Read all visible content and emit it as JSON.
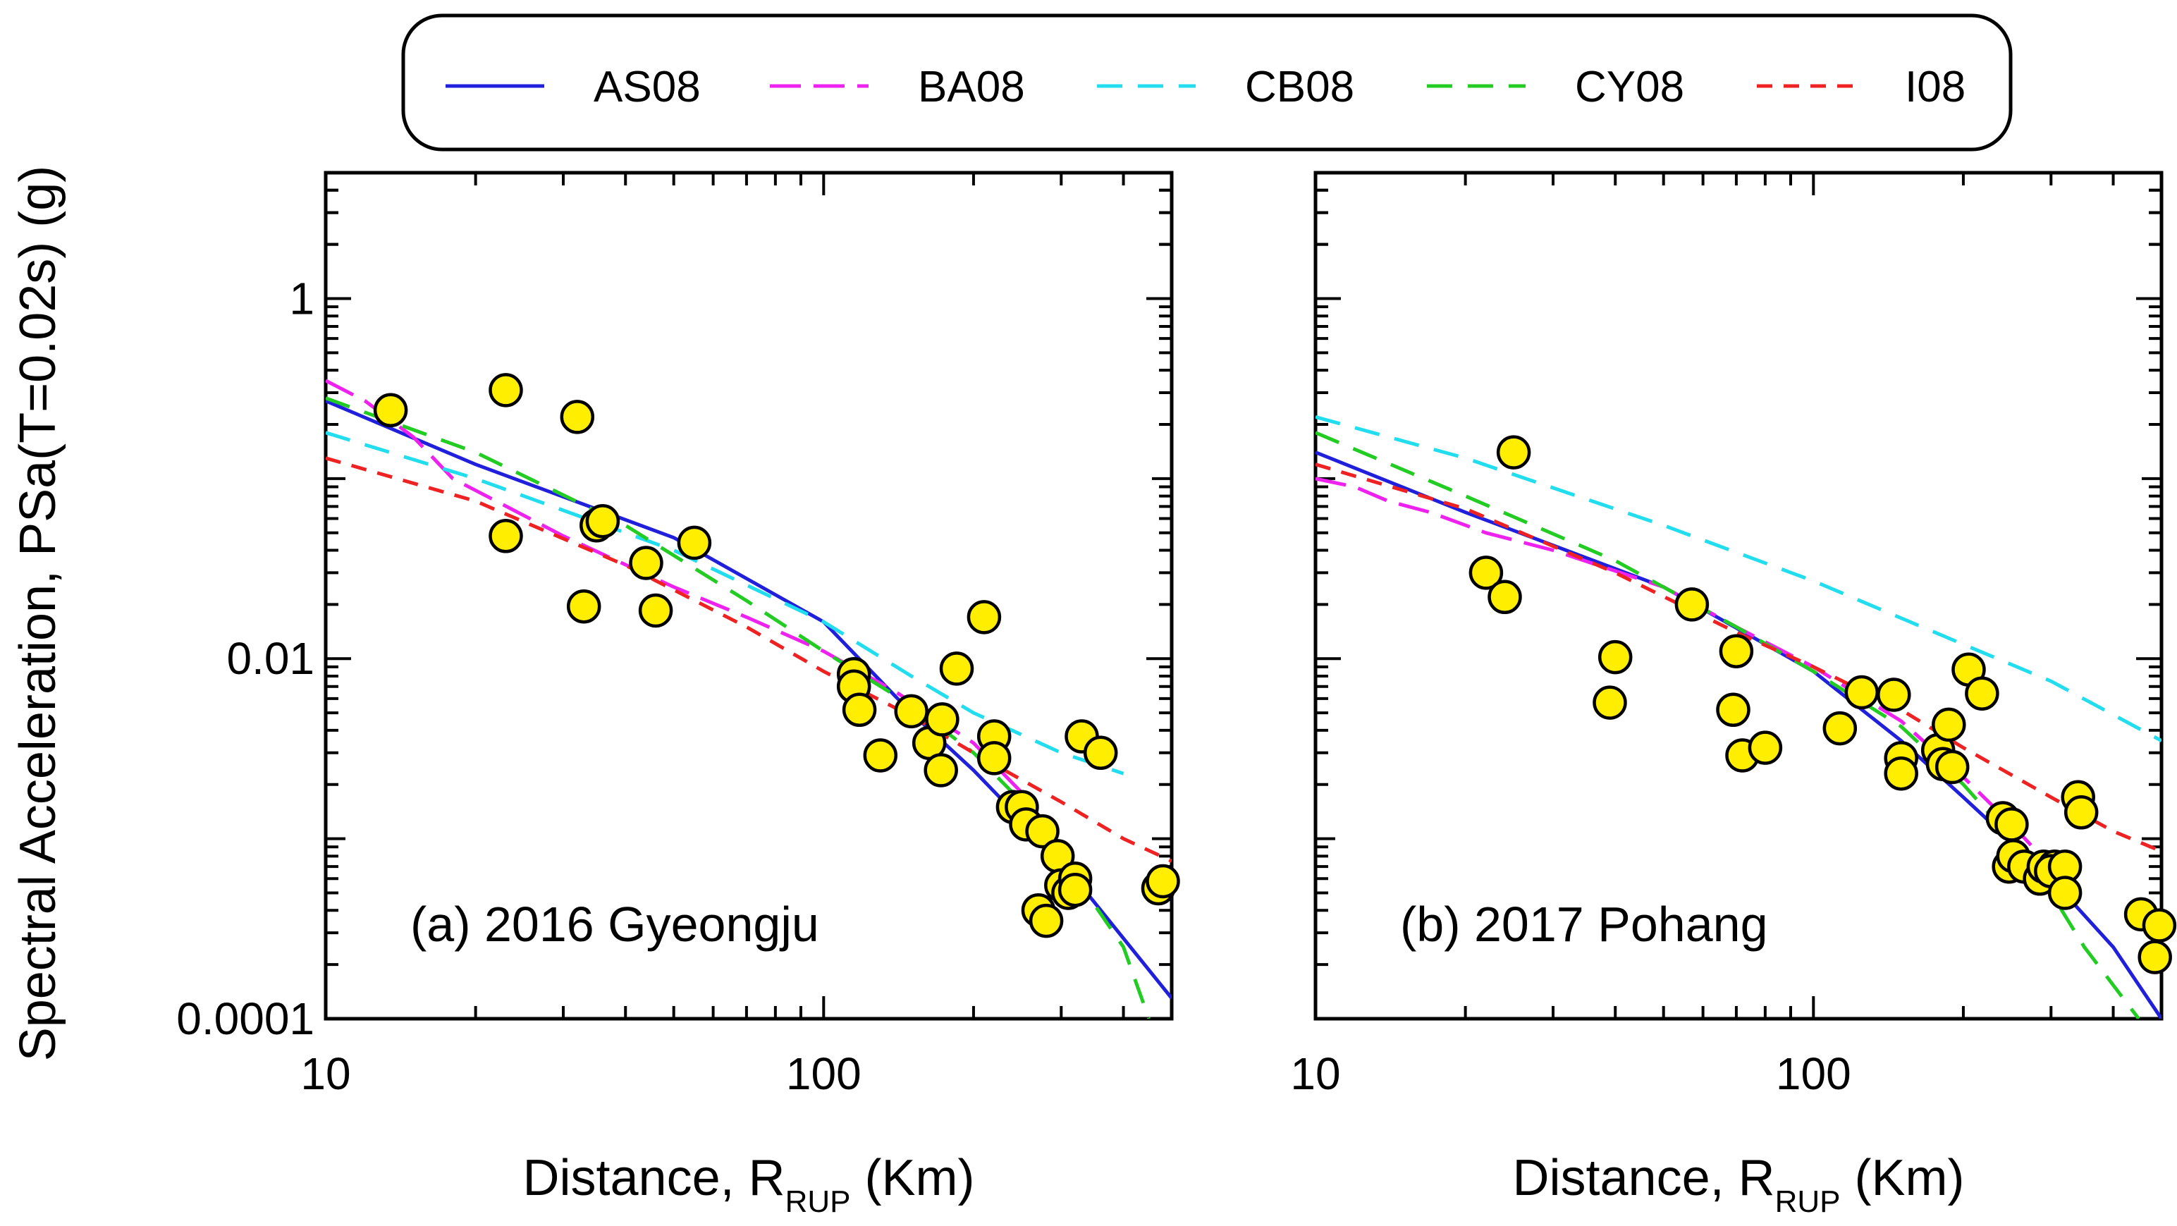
{
  "ylabel": "Spectral Acceleration, PSa(T=0.02s) (g)",
  "xlabel": {
    "main": "Distance, R",
    "sub": "RUP",
    "unit": " (Km)"
  },
  "legend": [
    {
      "key": "AS08",
      "label": "AS08",
      "color": "#1f1fdc",
      "dash": "solid"
    },
    {
      "key": "BA08",
      "label": "BA08",
      "color": "#ee22ee",
      "dash": "longdash"
    },
    {
      "key": "CB08",
      "label": "CB08",
      "color": "#22ddee",
      "dash": "dash"
    },
    {
      "key": "CY08",
      "label": "CY08",
      "color": "#22cc22",
      "dash": "dash"
    },
    {
      "key": "I08",
      "label": "I08",
      "color": "#ee2222",
      "dash": "shortdash"
    }
  ],
  "colors": {
    "marker_fill": "#ffee00",
    "marker_stroke": "#000000",
    "axis": "#000000"
  },
  "chart_data": [
    {
      "type": "scatter",
      "title": "(a) 2016 Gyeongju",
      "xscale": "log",
      "yscale": "log",
      "xlim": [
        10,
        500
      ],
      "ylim": [
        0.0001,
        5
      ],
      "xticks": [
        10,
        100
      ],
      "xtick_labels": [
        "10",
        "100"
      ],
      "yticks": [
        1,
        0.01,
        0.0001
      ],
      "ytick_labels": [
        "1",
        "0.01",
        "0.0001"
      ],
      "observations": [
        [
          13.5,
          0.24
        ],
        [
          23,
          0.31
        ],
        [
          32,
          0.22
        ],
        [
          23,
          0.048
        ],
        [
          35,
          0.055
        ],
        [
          36,
          0.058
        ],
        [
          33,
          0.0195
        ],
        [
          44,
          0.034
        ],
        [
          46,
          0.0185
        ],
        [
          55,
          0.044
        ],
        [
          210,
          0.017
        ],
        [
          115,
          0.0082
        ],
        [
          115,
          0.007
        ],
        [
          118,
          0.0052
        ],
        [
          130,
          0.0029
        ],
        [
          150,
          0.0051
        ],
        [
          163,
          0.0034
        ],
        [
          173,
          0.0046
        ],
        [
          172,
          0.0024
        ],
        [
          185,
          0.0088
        ],
        [
          220,
          0.0037
        ],
        [
          220,
          0.0028
        ],
        [
          240,
          0.0015
        ],
        [
          250,
          0.0015
        ],
        [
          255,
          0.0012
        ],
        [
          275,
          0.0011
        ],
        [
          295,
          0.0008
        ],
        [
          300,
          0.00055
        ],
        [
          310,
          0.0005
        ],
        [
          320,
          0.0006
        ],
        [
          320,
          0.00052
        ],
        [
          270,
          0.0004
        ],
        [
          280,
          0.00035
        ],
        [
          330,
          0.0037
        ],
        [
          360,
          0.003
        ],
        [
          470,
          0.00053
        ],
        [
          480,
          0.00058
        ]
      ],
      "series": [
        {
          "name": "AS08",
          "x": [
            10,
            20,
            50,
            100,
            150,
            200,
            300,
            500
          ],
          "y": [
            0.27,
            0.12,
            0.047,
            0.016,
            0.005,
            0.0024,
            0.00075,
            0.00013
          ]
        },
        {
          "name": "BA08",
          "x": [
            10,
            12,
            15,
            18,
            22,
            30,
            50,
            70,
            100,
            140,
            200,
            250,
            300
          ],
          "y": [
            0.35,
            0.27,
            0.17,
            0.1,
            0.075,
            0.048,
            0.025,
            0.017,
            0.011,
            0.0065,
            0.0034,
            0.0018,
            0.0009
          ]
        },
        {
          "name": "CB08",
          "x": [
            10,
            20,
            50,
            100,
            150,
            200,
            300,
            400
          ],
          "y": [
            0.18,
            0.1,
            0.04,
            0.016,
            0.008,
            0.005,
            0.003,
            0.0023
          ]
        },
        {
          "name": "CY08",
          "x": [
            10,
            20,
            40,
            70,
            100,
            150,
            200,
            250,
            300,
            400,
            450
          ],
          "y": [
            0.28,
            0.14,
            0.055,
            0.021,
            0.011,
            0.0055,
            0.003,
            0.0016,
            0.0008,
            0.00025,
            0.0001
          ]
        },
        {
          "name": "I08",
          "x": [
            10,
            20,
            40,
            70,
            100,
            150,
            200,
            300,
            400,
            500
          ],
          "y": [
            0.13,
            0.075,
            0.033,
            0.015,
            0.0085,
            0.0048,
            0.003,
            0.0016,
            0.001,
            0.00075
          ]
        }
      ]
    },
    {
      "type": "scatter",
      "title": "(b) 2017 Pohang",
      "xscale": "log",
      "yscale": "log",
      "xlim": [
        10,
        500
      ],
      "ylim": [
        0.0001,
        5
      ],
      "xticks": [
        10,
        100
      ],
      "xtick_labels": [
        "10",
        "100"
      ],
      "yticks": [
        1,
        0.01,
        0.0001
      ],
      "ytick_labels": [
        "1",
        "0.01",
        "0.0001"
      ],
      "observations": [
        [
          25,
          0.14
        ],
        [
          22,
          0.03
        ],
        [
          24,
          0.022
        ],
        [
          40,
          0.0102
        ],
        [
          39,
          0.0057
        ],
        [
          57,
          0.02
        ],
        [
          70,
          0.011
        ],
        [
          69,
          0.0052
        ],
        [
          72,
          0.0029
        ],
        [
          80,
          0.0032
        ],
        [
          113,
          0.0041
        ],
        [
          125,
          0.0065
        ],
        [
          145,
          0.0063
        ],
        [
          150,
          0.0028
        ],
        [
          150,
          0.0023
        ],
        [
          178,
          0.0031
        ],
        [
          182,
          0.0026
        ],
        [
          187,
          0.0043
        ],
        [
          190,
          0.0025
        ],
        [
          205,
          0.0087
        ],
        [
          218,
          0.0064
        ],
        [
          240,
          0.0013
        ],
        [
          250,
          0.0012
        ],
        [
          247,
          0.0007
        ],
        [
          252,
          0.0008
        ],
        [
          265,
          0.0007
        ],
        [
          285,
          0.0006
        ],
        [
          290,
          0.0007
        ],
        [
          305,
          0.0007
        ],
        [
          300,
          0.00066
        ],
        [
          320,
          0.0007
        ],
        [
          320,
          0.0005
        ],
        [
          340,
          0.0017
        ],
        [
          345,
          0.0014
        ],
        [
          455,
          0.00038
        ],
        [
          495,
          0.00033
        ],
        [
          485,
          0.00022
        ]
      ],
      "series": [
        {
          "name": "AS08",
          "x": [
            10,
            20,
            50,
            100,
            150,
            200,
            300,
            400,
            500
          ],
          "y": [
            0.14,
            0.065,
            0.025,
            0.0085,
            0.0035,
            0.0017,
            0.0006,
            0.00025,
            0.0001
          ]
        },
        {
          "name": "BA08",
          "x": [
            10,
            12,
            14,
            17,
            22,
            30,
            50,
            70,
            100,
            150,
            200,
            250,
            300
          ],
          "y": [
            0.1,
            0.09,
            0.075,
            0.065,
            0.05,
            0.04,
            0.025,
            0.015,
            0.009,
            0.0045,
            0.0022,
            0.0012,
            0.0007
          ]
        },
        {
          "name": "CB08",
          "x": [
            10,
            20,
            50,
            100,
            200,
            300,
            500
          ],
          "y": [
            0.22,
            0.13,
            0.055,
            0.027,
            0.012,
            0.0075,
            0.0035
          ]
        },
        {
          "name": "CY08",
          "x": [
            10,
            20,
            40,
            70,
            100,
            150,
            200,
            250,
            300,
            350,
            450
          ],
          "y": [
            0.18,
            0.08,
            0.035,
            0.015,
            0.0085,
            0.0042,
            0.002,
            0.001,
            0.0005,
            0.00025,
            0.0001
          ]
        },
        {
          "name": "I08",
          "x": [
            10,
            20,
            40,
            70,
            100,
            150,
            200,
            300,
            400,
            500
          ],
          "y": [
            0.12,
            0.068,
            0.03,
            0.014,
            0.009,
            0.0052,
            0.0032,
            0.0017,
            0.0011,
            0.00085
          ]
        }
      ]
    }
  ]
}
